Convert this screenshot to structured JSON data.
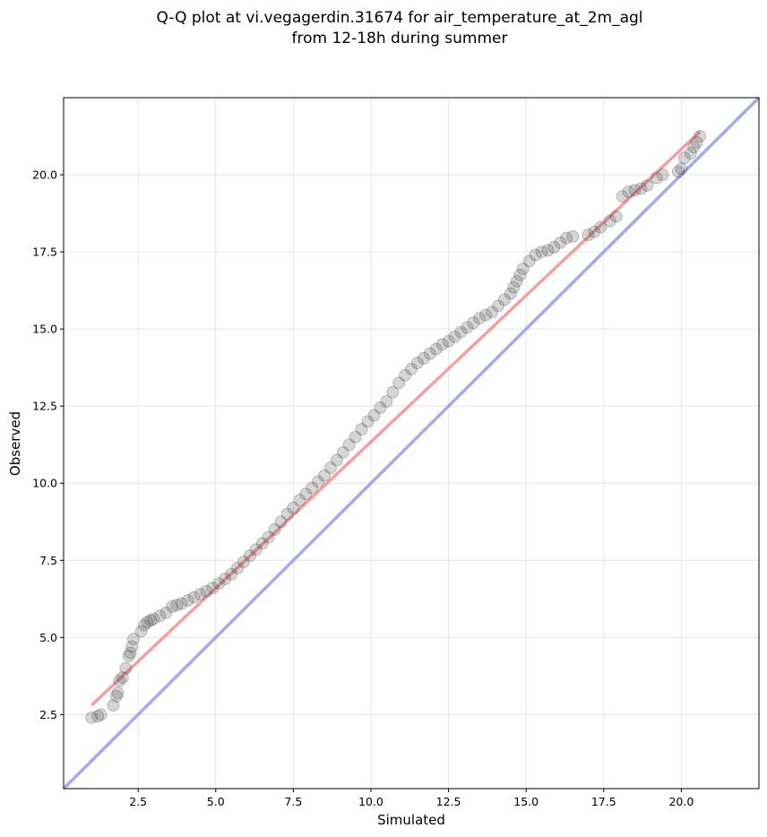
{
  "chart_data": {
    "type": "scatter",
    "title": "Q-Q plot at vi.vegagerdin.31674 for air_temperature_at_2m_agl",
    "subtitle": "from 12-18h during summer",
    "xlabel": "Simulated",
    "ylabel": "Observed",
    "xlim": [
      0.1,
      22.5
    ],
    "ylim": [
      0.1,
      22.5
    ],
    "x_ticks": [
      "2.5",
      "5.0",
      "7.5",
      "10.0",
      "12.5",
      "15.0",
      "17.5",
      "20.0"
    ],
    "y_ticks": [
      "2.5",
      "5.0",
      "7.5",
      "10.0",
      "12.5",
      "15.0",
      "17.5",
      "20.0"
    ],
    "grid": true,
    "legend": "none",
    "series": [
      {
        "kind": "quantiles",
        "color": "#444444",
        "x": [
          1.0,
          1.2,
          1.3,
          1.7,
          1.8,
          1.85,
          1.9,
          2.0,
          2.1,
          2.2,
          2.25,
          2.3,
          2.35,
          2.6,
          2.7,
          2.8,
          2.9,
          3.0,
          3.2,
          3.4,
          3.6,
          3.75,
          3.9,
          4.1,
          4.3,
          4.5,
          4.7,
          4.9,
          5.1,
          5.3,
          5.5,
          5.7,
          5.9,
          6.1,
          6.3,
          6.5,
          6.7,
          6.9,
          7.1,
          7.3,
          7.5,
          7.7,
          7.9,
          8.1,
          8.3,
          8.5,
          8.7,
          8.9,
          9.1,
          9.3,
          9.5,
          9.7,
          9.9,
          10.1,
          10.3,
          10.5,
          10.7,
          10.9,
          11.1,
          11.3,
          11.5,
          11.7,
          11.9,
          12.1,
          12.3,
          12.5,
          12.7,
          12.9,
          13.1,
          13.3,
          13.5,
          13.7,
          13.9,
          14.1,
          14.3,
          14.5,
          14.6,
          14.7,
          14.8,
          14.9,
          15.1,
          15.3,
          15.5,
          15.7,
          15.9,
          16.1,
          16.3,
          16.5,
          17.0,
          17.2,
          17.4,
          17.7,
          17.9,
          18.1,
          18.3,
          18.5,
          18.7,
          18.9,
          19.2,
          19.4,
          19.9,
          20.0,
          20.1,
          20.3,
          20.4,
          20.5,
          20.6
        ],
        "y": [
          2.4,
          2.45,
          2.5,
          2.8,
          3.1,
          3.2,
          3.6,
          3.7,
          4.0,
          4.4,
          4.5,
          4.7,
          4.95,
          5.2,
          5.4,
          5.5,
          5.55,
          5.6,
          5.7,
          5.8,
          6.0,
          6.05,
          6.1,
          6.2,
          6.3,
          6.4,
          6.5,
          6.6,
          6.75,
          6.9,
          7.05,
          7.25,
          7.45,
          7.65,
          7.85,
          8.05,
          8.25,
          8.5,
          8.75,
          9.0,
          9.2,
          9.45,
          9.65,
          9.85,
          10.05,
          10.25,
          10.5,
          10.75,
          11.0,
          11.25,
          11.5,
          11.75,
          12.0,
          12.2,
          12.45,
          12.65,
          12.95,
          13.25,
          13.5,
          13.7,
          13.9,
          14.05,
          14.2,
          14.35,
          14.5,
          14.6,
          14.75,
          14.9,
          15.05,
          15.2,
          15.35,
          15.45,
          15.55,
          15.75,
          15.95,
          16.15,
          16.35,
          16.55,
          16.75,
          16.95,
          17.2,
          17.4,
          17.5,
          17.55,
          17.65,
          17.8,
          17.95,
          18.0,
          18.05,
          18.15,
          18.3,
          18.5,
          18.65,
          19.3,
          19.45,
          19.5,
          19.55,
          19.65,
          19.9,
          20.0,
          20.1,
          20.2,
          20.55,
          20.7,
          20.9,
          21.05,
          21.25
        ]
      },
      {
        "kind": "fit-line",
        "color": "#f08080",
        "x": [
          1.0,
          20.6
        ],
        "y": [
          2.8,
          21.4
        ]
      },
      {
        "kind": "identity-line",
        "color": "#9999ee",
        "x": [
          0.1,
          22.5
        ],
        "y": [
          0.1,
          22.5
        ]
      }
    ]
  }
}
